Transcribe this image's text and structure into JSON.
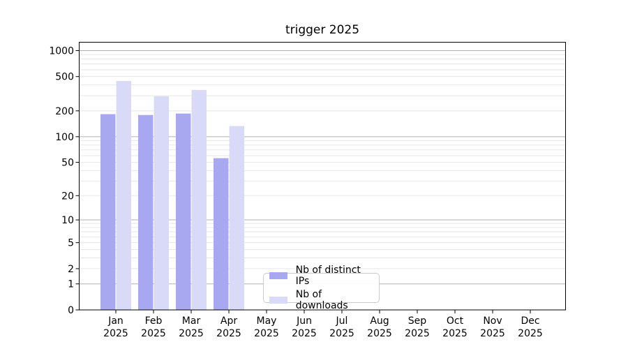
{
  "chart_data": {
    "type": "bar",
    "title": "trigger 2025",
    "categories": [
      "Jan",
      "Feb",
      "Mar",
      "Apr",
      "May",
      "Jun",
      "Jul",
      "Aug",
      "Sep",
      "Oct",
      "Nov",
      "Dec"
    ],
    "category_year": "2025",
    "series": [
      {
        "name": "Nb of distinct IPs",
        "color": "#a8a8f0",
        "values": [
          183,
          179,
          186,
          56,
          null,
          null,
          null,
          null,
          null,
          null,
          null,
          null
        ]
      },
      {
        "name": "Nb of downloads",
        "color": "#d9d9f8",
        "values": [
          445,
          296,
          350,
          133,
          null,
          null,
          null,
          null,
          null,
          null,
          null,
          null
        ]
      }
    ],
    "yscale": {
      "type": "symlog-ln1p",
      "top_value": 1250
    },
    "y_ticks": [
      0,
      1,
      2,
      5,
      10,
      20,
      50,
      100,
      200,
      500,
      1000
    ],
    "y_major_grid": [
      1,
      10,
      100,
      1000
    ],
    "y_minor_grid": [
      2,
      3,
      4,
      5,
      6,
      7,
      8,
      9,
      20,
      30,
      40,
      50,
      60,
      70,
      80,
      90,
      200,
      300,
      400,
      500,
      600,
      700,
      800,
      900
    ],
    "legend_position": "lower center",
    "grid": true,
    "colors": {
      "major_grid": "#b0b0b0",
      "minor_grid": "#e7e7e7",
      "spine": "#000000",
      "text": "#000000",
      "background": "#ffffff"
    }
  }
}
